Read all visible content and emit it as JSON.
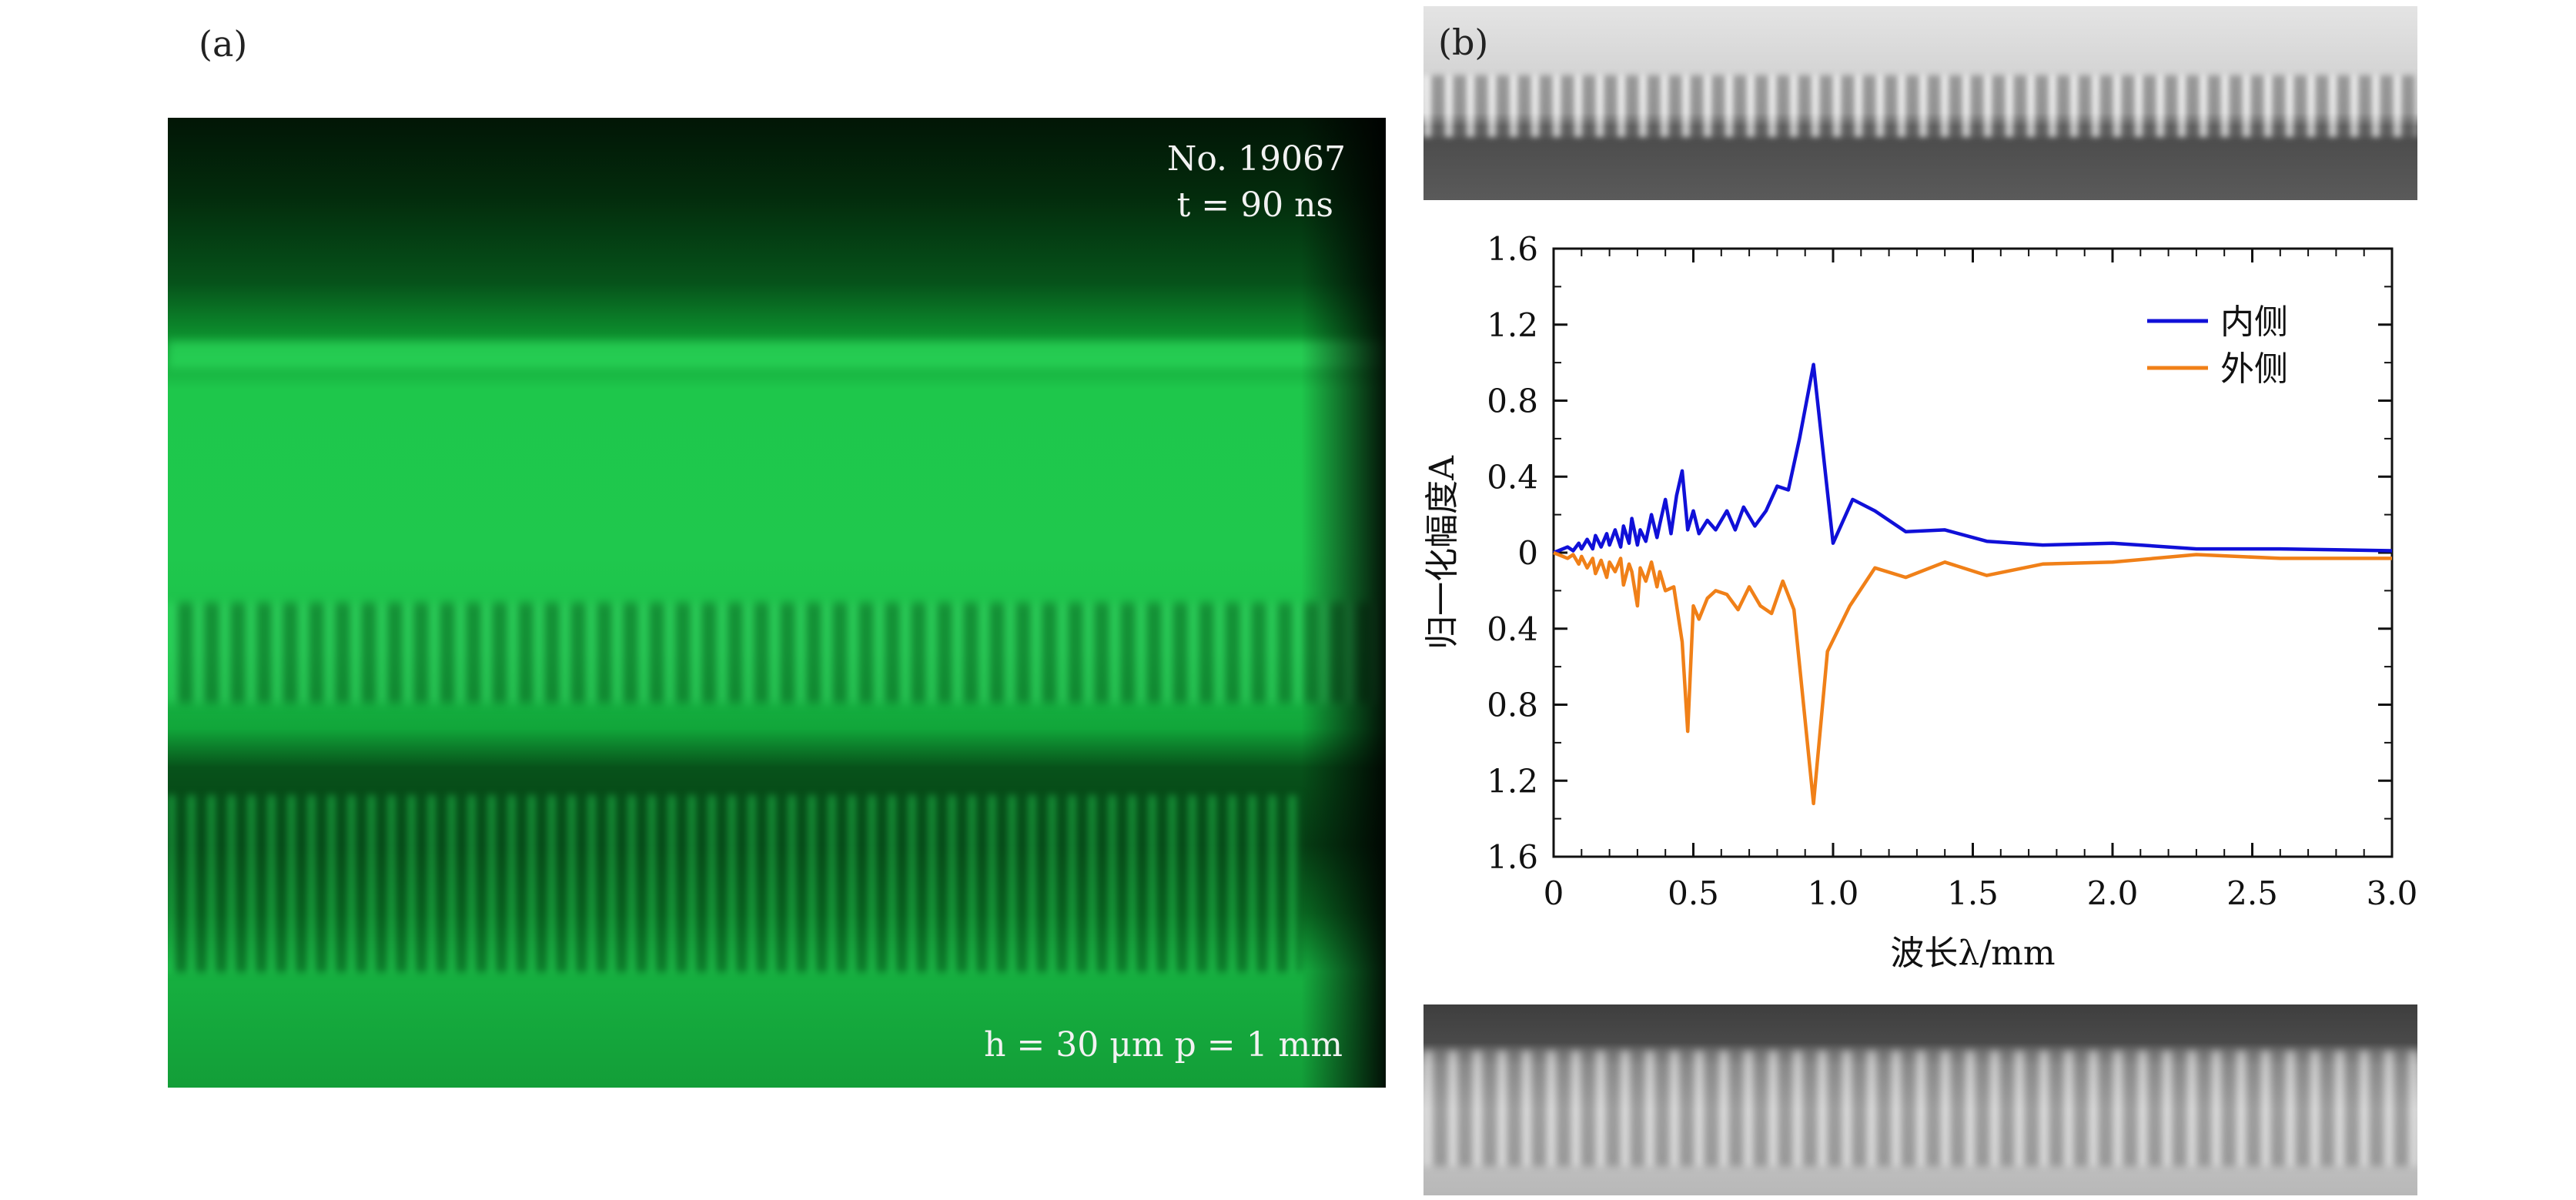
{
  "panel_a": {
    "label": "(a)",
    "shot_id": "No. 19067",
    "time": "t = 90 ns",
    "params": "h = 30 μm   p = 1 mm"
  },
  "panel_b": {
    "label": "(b)"
  },
  "colors": {
    "inner": "#1010d8",
    "outer": "#f08018",
    "photo_green": "#1ec74b"
  },
  "chart_data": {
    "type": "line",
    "xlabel": "波长λ/mm",
    "ylabel": "归一化幅度A",
    "xlim": [
      0,
      3.0
    ],
    "ylim": [
      -1.6,
      1.6
    ],
    "x_ticks": [
      "0",
      "0.5",
      "1.0",
      "1.5",
      "2.0",
      "2.5",
      "3.0"
    ],
    "y_ticks": [
      "1.6",
      "1.2",
      "0.8",
      "0.4",
      "0",
      "0.4",
      "0.8",
      "1.2",
      "1.6"
    ],
    "grid": false,
    "legend_position": "top-right",
    "series": [
      {
        "name": "内侧",
        "color": "#1010d8",
        "x": [
          0,
          0.05,
          0.07,
          0.09,
          0.1,
          0.12,
          0.14,
          0.15,
          0.17,
          0.19,
          0.2,
          0.22,
          0.24,
          0.25,
          0.27,
          0.28,
          0.3,
          0.31,
          0.33,
          0.35,
          0.37,
          0.38,
          0.4,
          0.42,
          0.44,
          0.46,
          0.48,
          0.5,
          0.52,
          0.55,
          0.58,
          0.62,
          0.65,
          0.68,
          0.72,
          0.76,
          0.8,
          0.84,
          0.88,
          0.93,
          1.0,
          1.07,
          1.15,
          1.26,
          1.4,
          1.55,
          1.75,
          2.0,
          2.3,
          2.6,
          3.0
        ],
        "y": [
          0,
          0.03,
          0.01,
          0.05,
          0.02,
          0.07,
          0.02,
          0.09,
          0.03,
          0.1,
          0.04,
          0.12,
          0.03,
          0.14,
          0.05,
          0.18,
          0.04,
          0.12,
          0.06,
          0.2,
          0.08,
          0.15,
          0.28,
          0.1,
          0.3,
          0.43,
          0.12,
          0.22,
          0.1,
          0.17,
          0.12,
          0.22,
          0.12,
          0.24,
          0.14,
          0.22,
          0.35,
          0.33,
          0.6,
          0.99,
          0.05,
          0.28,
          0.22,
          0.11,
          0.12,
          0.06,
          0.04,
          0.05,
          0.02,
          0.02,
          0.01
        ]
      },
      {
        "name": "外侧",
        "color": "#f08018",
        "x": [
          0,
          0.05,
          0.07,
          0.09,
          0.1,
          0.12,
          0.14,
          0.15,
          0.17,
          0.19,
          0.2,
          0.22,
          0.24,
          0.25,
          0.27,
          0.28,
          0.3,
          0.31,
          0.33,
          0.35,
          0.37,
          0.38,
          0.4,
          0.43,
          0.46,
          0.48,
          0.5,
          0.52,
          0.55,
          0.58,
          0.62,
          0.66,
          0.7,
          0.74,
          0.78,
          0.82,
          0.86,
          0.93,
          0.98,
          1.06,
          1.15,
          1.26,
          1.4,
          1.55,
          1.75,
          2.0,
          2.3,
          2.6,
          3.0
        ],
        "y": [
          0,
          -0.03,
          -0.01,
          -0.06,
          -0.02,
          -0.08,
          -0.03,
          -0.11,
          -0.04,
          -0.13,
          -0.05,
          -0.1,
          -0.03,
          -0.17,
          -0.06,
          -0.1,
          -0.28,
          -0.08,
          -0.15,
          -0.05,
          -0.18,
          -0.1,
          -0.2,
          -0.18,
          -0.47,
          -0.94,
          -0.28,
          -0.35,
          -0.24,
          -0.2,
          -0.22,
          -0.3,
          -0.18,
          -0.28,
          -0.32,
          -0.15,
          -0.3,
          -1.32,
          -0.52,
          -0.28,
          -0.08,
          -0.13,
          -0.05,
          -0.12,
          -0.06,
          -0.05,
          -0.01,
          -0.03,
          -0.03
        ]
      }
    ]
  }
}
